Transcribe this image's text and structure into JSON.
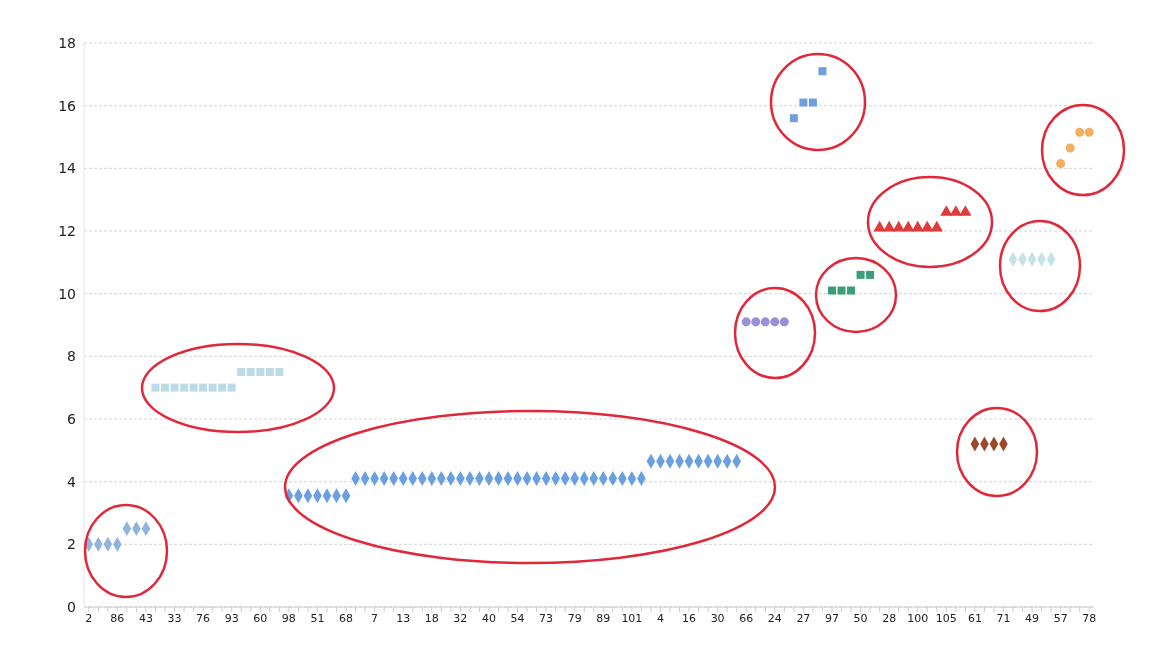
{
  "chart_data": {
    "type": "scatter",
    "categories": [
      "2",
      null,
      null,
      "86",
      null,
      null,
      "43",
      null,
      null,
      "33",
      null,
      null,
      "76",
      null,
      null,
      "93",
      null,
      null,
      "60",
      null,
      null,
      "98",
      null,
      null,
      "51",
      null,
      null,
      "68",
      null,
      null,
      "7",
      null,
      null,
      "13",
      null,
      null,
      "18",
      null,
      null,
      "32",
      null,
      null,
      "40",
      null,
      null,
      "54",
      null,
      null,
      "73",
      null,
      null,
      "79",
      null,
      null,
      "89",
      null,
      null,
      "101",
      null,
      null,
      "4",
      null,
      null,
      "16",
      null,
      null,
      "30",
      null,
      null,
      "66",
      null,
      null,
      "24",
      null,
      null,
      "27",
      null,
      null,
      "97",
      null,
      null,
      "50",
      null,
      null,
      "28",
      null,
      null,
      "100",
      null,
      null,
      "105",
      null,
      null,
      "61",
      null,
      null,
      "71",
      null,
      null,
      "49",
      null,
      null,
      "57",
      null,
      null,
      "78"
    ],
    "series": [
      {
        "color": "#8fb4e0",
        "marker": "diamond",
        "values": [
          2,
          2,
          2,
          2,
          2.5,
          2.5,
          2.5,
          null,
          null,
          null,
          null,
          null,
          null,
          null,
          null,
          null,
          null,
          null,
          null,
          null,
          null,
          null,
          null,
          null,
          null,
          null,
          null,
          null,
          null,
          null,
          null,
          null,
          null,
          null,
          null,
          null,
          null,
          null,
          null,
          null,
          null,
          null,
          null,
          null,
          null,
          null,
          null,
          null,
          null,
          null,
          null,
          null,
          null,
          null,
          null,
          null,
          null,
          null,
          null,
          null,
          null,
          null,
          null,
          null,
          null,
          null,
          null,
          null,
          null,
          null,
          null,
          null,
          null,
          null,
          null,
          null,
          null,
          null,
          null,
          null,
          null,
          null,
          null,
          null,
          null,
          null,
          null,
          null,
          null,
          null,
          null,
          null,
          null,
          null,
          null,
          null,
          null,
          null,
          null,
          null,
          null,
          null,
          null,
          null,
          null,
          null
        ]
      },
      {
        "color": "#bcdbe6",
        "marker": "square",
        "values": [
          null,
          null,
          null,
          null,
          null,
          null,
          null,
          7,
          7,
          7,
          7,
          7,
          7,
          7,
          7,
          7,
          7.5,
          7.5,
          7.5,
          7.5,
          7.5,
          null,
          null,
          null,
          null,
          null,
          null,
          null,
          null,
          null,
          null,
          null,
          null,
          null,
          null,
          null,
          null,
          null,
          null,
          null,
          null,
          null,
          null,
          null,
          null,
          null,
          null,
          null,
          null,
          null,
          null,
          null,
          null,
          null,
          null,
          null,
          null,
          null,
          null,
          null,
          null,
          null,
          null,
          null,
          null,
          null,
          null,
          null,
          null,
          null,
          null,
          null,
          null,
          null,
          null,
          null,
          null,
          null,
          null,
          null,
          null,
          null,
          null,
          null,
          null,
          null,
          null,
          null,
          null,
          null,
          null,
          null,
          null,
          null,
          null,
          null,
          null,
          null,
          null,
          null,
          null,
          null,
          null,
          null,
          null,
          null
        ]
      },
      {
        "color": "#6a9fe0",
        "marker": "diamond",
        "values": [
          null,
          null,
          null,
          null,
          null,
          null,
          null,
          null,
          null,
          null,
          null,
          null,
          null,
          null,
          null,
          null,
          null,
          null,
          null,
          null,
          null,
          3.55,
          3.55,
          3.55,
          3.55,
          3.55,
          3.55,
          3.55,
          4.1,
          4.1,
          4.1,
          4.1,
          4.1,
          4.1,
          4.1,
          4.1,
          4.1,
          4.1,
          4.1,
          4.1,
          4.1,
          4.1,
          4.1,
          4.1,
          4.1,
          4.1,
          4.1,
          4.1,
          4.1,
          4.1,
          4.1,
          4.1,
          4.1,
          4.1,
          4.1,
          4.1,
          4.1,
          4.1,
          4.1,
          4.65,
          4.65,
          4.65,
          4.65,
          4.65,
          4.65,
          4.65,
          4.65,
          4.65,
          4.65,
          null,
          null,
          null,
          null,
          null,
          null,
          null,
          null,
          null,
          null,
          null,
          null,
          null,
          null,
          null,
          null,
          null,
          null,
          null,
          null,
          null,
          null,
          null,
          null,
          null,
          null,
          null,
          null,
          null,
          null,
          null,
          null,
          null,
          null,
          null,
          null,
          null
        ]
      },
      {
        "color": "#9b8fdc",
        "marker": "circle",
        "values": [
          null,
          null,
          null,
          null,
          null,
          null,
          null,
          null,
          null,
          null,
          null,
          null,
          null,
          null,
          null,
          null,
          null,
          null,
          null,
          null,
          null,
          null,
          null,
          null,
          null,
          null,
          null,
          null,
          null,
          null,
          null,
          null,
          null,
          null,
          null,
          null,
          null,
          null,
          null,
          null,
          null,
          null,
          null,
          null,
          null,
          null,
          null,
          null,
          null,
          null,
          null,
          null,
          null,
          null,
          null,
          null,
          null,
          null,
          null,
          null,
          null,
          null,
          null,
          null,
          null,
          null,
          null,
          null,
          null,
          9.1,
          9.1,
          9.1,
          9.1,
          9.1,
          null,
          null,
          null,
          null,
          null,
          null,
          null,
          null,
          null,
          null,
          null,
          null,
          null,
          null,
          null,
          null,
          null,
          null,
          null,
          null,
          null,
          null,
          null,
          null,
          null,
          null,
          null,
          null,
          null,
          null,
          null,
          null
        ]
      },
      {
        "color": "#6f9fe0",
        "marker": "square",
        "values": [
          null,
          null,
          null,
          null,
          null,
          null,
          null,
          null,
          null,
          null,
          null,
          null,
          null,
          null,
          null,
          null,
          null,
          null,
          null,
          null,
          null,
          null,
          null,
          null,
          null,
          null,
          null,
          null,
          null,
          null,
          null,
          null,
          null,
          null,
          null,
          null,
          null,
          null,
          null,
          null,
          null,
          null,
          null,
          null,
          null,
          null,
          null,
          null,
          null,
          null,
          null,
          null,
          null,
          null,
          null,
          null,
          null,
          null,
          null,
          null,
          null,
          null,
          null,
          null,
          null,
          null,
          null,
          null,
          null,
          null,
          null,
          null,
          null,
          null,
          15.6,
          16.1,
          16.1,
          17.1,
          null,
          null,
          null,
          null,
          null,
          null,
          null,
          null,
          null,
          null,
          null,
          null,
          null,
          null,
          null,
          null,
          null,
          null,
          null,
          null,
          null,
          null,
          null,
          null,
          null,
          null,
          null,
          null
        ]
      },
      {
        "color": "#3a9e78",
        "marker": "square",
        "values": [
          null,
          null,
          null,
          null,
          null,
          null,
          null,
          null,
          null,
          null,
          null,
          null,
          null,
          null,
          null,
          null,
          null,
          null,
          null,
          null,
          null,
          null,
          null,
          null,
          null,
          null,
          null,
          null,
          null,
          null,
          null,
          null,
          null,
          null,
          null,
          null,
          null,
          null,
          null,
          null,
          null,
          null,
          null,
          null,
          null,
          null,
          null,
          null,
          null,
          null,
          null,
          null,
          null,
          null,
          null,
          null,
          null,
          null,
          null,
          null,
          null,
          null,
          null,
          null,
          null,
          null,
          null,
          null,
          null,
          null,
          null,
          null,
          null,
          null,
          null,
          null,
          null,
          null,
          10.1,
          10.1,
          10.1,
          10.6,
          10.6,
          null,
          null,
          null,
          null,
          null,
          null,
          null,
          null,
          null,
          null,
          null,
          null,
          null,
          null,
          null,
          null,
          null,
          null,
          null,
          null,
          null,
          null,
          null
        ]
      },
      {
        "color": "#e03a3a",
        "marker": "triangle",
        "values": [
          null,
          null,
          null,
          null,
          null,
          null,
          null,
          null,
          null,
          null,
          null,
          null,
          null,
          null,
          null,
          null,
          null,
          null,
          null,
          null,
          null,
          null,
          null,
          null,
          null,
          null,
          null,
          null,
          null,
          null,
          null,
          null,
          null,
          null,
          null,
          null,
          null,
          null,
          null,
          null,
          null,
          null,
          null,
          null,
          null,
          null,
          null,
          null,
          null,
          null,
          null,
          null,
          null,
          null,
          null,
          null,
          null,
          null,
          null,
          null,
          null,
          null,
          null,
          null,
          null,
          null,
          null,
          null,
          null,
          null,
          null,
          null,
          null,
          null,
          null,
          null,
          null,
          null,
          null,
          null,
          null,
          null,
          null,
          12.1,
          12.1,
          12.1,
          12.1,
          12.1,
          12.1,
          12.1,
          12.6,
          12.6,
          12.6,
          null,
          null,
          null,
          null,
          null,
          null,
          null,
          null,
          null,
          null,
          null,
          null,
          null
        ]
      },
      {
        "color": "#9a4a2a",
        "marker": "diamond",
        "values": [
          null,
          null,
          null,
          null,
          null,
          null,
          null,
          null,
          null,
          null,
          null,
          null,
          null,
          null,
          null,
          null,
          null,
          null,
          null,
          null,
          null,
          null,
          null,
          null,
          null,
          null,
          null,
          null,
          null,
          null,
          null,
          null,
          null,
          null,
          null,
          null,
          null,
          null,
          null,
          null,
          null,
          null,
          null,
          null,
          null,
          null,
          null,
          null,
          null,
          null,
          null,
          null,
          null,
          null,
          null,
          null,
          null,
          null,
          null,
          null,
          null,
          null,
          null,
          null,
          null,
          null,
          null,
          null,
          null,
          null,
          null,
          null,
          null,
          null,
          null,
          null,
          null,
          null,
          null,
          null,
          null,
          null,
          null,
          null,
          null,
          null,
          null,
          null,
          null,
          null,
          null,
          null,
          null,
          5.2,
          5.2,
          5.2,
          5.2,
          null,
          null,
          null,
          null,
          null,
          null,
          null,
          null,
          null
        ]
      },
      {
        "color": "#c6e2e8",
        "marker": "diamond",
        "values": [
          null,
          null,
          null,
          null,
          null,
          null,
          null,
          null,
          null,
          null,
          null,
          null,
          null,
          null,
          null,
          null,
          null,
          null,
          null,
          null,
          null,
          null,
          null,
          null,
          null,
          null,
          null,
          null,
          null,
          null,
          null,
          null,
          null,
          null,
          null,
          null,
          null,
          null,
          null,
          null,
          null,
          null,
          null,
          null,
          null,
          null,
          null,
          null,
          null,
          null,
          null,
          null,
          null,
          null,
          null,
          null,
          null,
          null,
          null,
          null,
          null,
          null,
          null,
          null,
          null,
          null,
          null,
          null,
          null,
          null,
          null,
          null,
          null,
          null,
          null,
          null,
          null,
          null,
          null,
          null,
          null,
          null,
          null,
          null,
          null,
          null,
          null,
          null,
          null,
          null,
          null,
          null,
          null,
          null,
          null,
          null,
          null,
          11.1,
          11.1,
          11.1,
          11.1,
          11.1,
          null,
          null,
          null,
          null
        ]
      },
      {
        "color": "#f0b060",
        "marker": "circle",
        "values": [
          null,
          null,
          null,
          null,
          null,
          null,
          null,
          null,
          null,
          null,
          null,
          null,
          null,
          null,
          null,
          null,
          null,
          null,
          null,
          null,
          null,
          null,
          null,
          null,
          null,
          null,
          null,
          null,
          null,
          null,
          null,
          null,
          null,
          null,
          null,
          null,
          null,
          null,
          null,
          null,
          null,
          null,
          null,
          null,
          null,
          null,
          null,
          null,
          null,
          null,
          null,
          null,
          null,
          null,
          null,
          null,
          null,
          null,
          null,
          null,
          null,
          null,
          null,
          null,
          null,
          null,
          null,
          null,
          null,
          null,
          null,
          null,
          null,
          null,
          null,
          null,
          null,
          null,
          null,
          null,
          null,
          null,
          null,
          null,
          null,
          null,
          null,
          null,
          null,
          null,
          null,
          null,
          null,
          null,
          null,
          null,
          null,
          null,
          null,
          null,
          null,
          null,
          14.15,
          14.65,
          15.15,
          15.15
        ]
      }
    ],
    "ylim": [
      0,
      18
    ],
    "yticks": [
      0,
      2,
      4,
      6,
      8,
      10,
      12,
      14,
      16,
      18
    ],
    "grid": "y"
  }
}
